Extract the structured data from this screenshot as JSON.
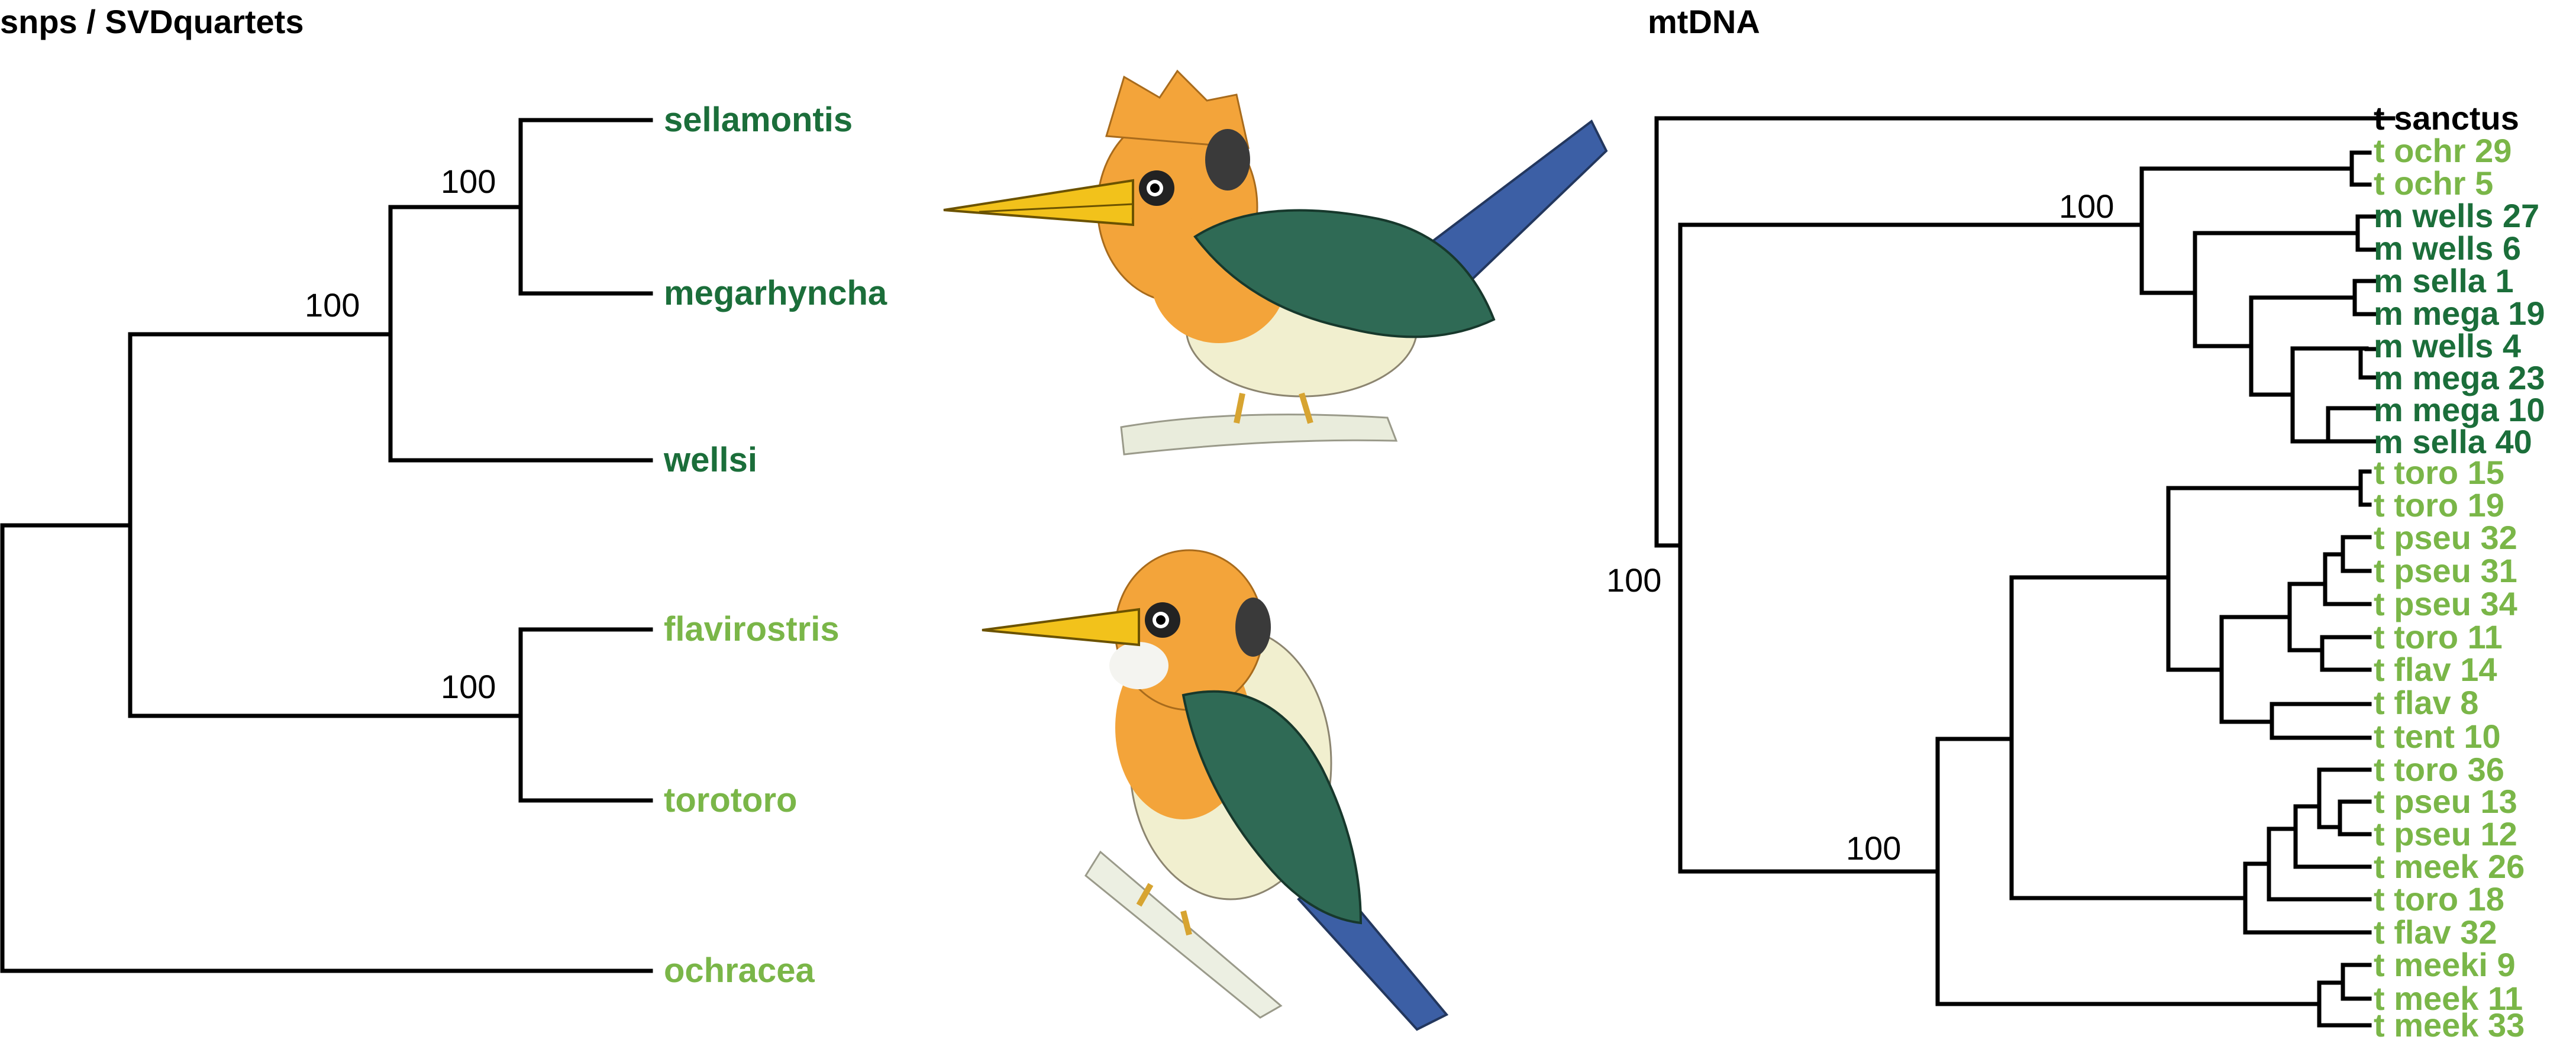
{
  "colors": {
    "dark_green": "#1b6e3a",
    "light_green": "#7ab648",
    "black": "#000000",
    "orange": "#f3a43a",
    "bird_green": "#2f6a55",
    "bird_blue": "#3c5fa5",
    "cream": "#f1efcf",
    "beak": "#f2c21b"
  },
  "left_tree": {
    "title": "snps / SVDquartets",
    "tips": [
      {
        "label": "sellamontis",
        "color": "#1b6e3a"
      },
      {
        "label": "megarhyncha",
        "color": "#1b6e3a"
      },
      {
        "label": "wellsi",
        "color": "#1b6e3a"
      },
      {
        "label": "flavirostris",
        "color": "#7ab648"
      },
      {
        "label": "torotoro",
        "color": "#7ab648"
      },
      {
        "label": "ochracea",
        "color": "#7ab648"
      }
    ],
    "supports": [
      "100",
      "100",
      "100"
    ]
  },
  "right_tree": {
    "title": "mtDNA",
    "tips": [
      {
        "label": "t sanctus",
        "color": "#000000"
      },
      {
        "label": "t ochr 29",
        "color": "#7ab648"
      },
      {
        "label": "t ochr 5",
        "color": "#7ab648"
      },
      {
        "label": "m wells 27",
        "color": "#1b6e3a"
      },
      {
        "label": "m wells 6",
        "color": "#1b6e3a"
      },
      {
        "label": "m sella 1",
        "color": "#1b6e3a"
      },
      {
        "label": "m mega 19",
        "color": "#1b6e3a"
      },
      {
        "label": "m wells 4",
        "color": "#1b6e3a"
      },
      {
        "label": "m mega 23",
        "color": "#1b6e3a"
      },
      {
        "label": "m mega 10",
        "color": "#1b6e3a"
      },
      {
        "label": "m sella 40",
        "color": "#1b6e3a"
      },
      {
        "label": "t toro 15",
        "color": "#7ab648"
      },
      {
        "label": "t toro 19",
        "color": "#7ab648"
      },
      {
        "label": "t pseu 32",
        "color": "#7ab648"
      },
      {
        "label": "t pseu 31",
        "color": "#7ab648"
      },
      {
        "label": "t pseu 34",
        "color": "#7ab648"
      },
      {
        "label": "t toro 11",
        "color": "#7ab648"
      },
      {
        "label": "t flav 14",
        "color": "#7ab648"
      },
      {
        "label": "t flav 8",
        "color": "#7ab648"
      },
      {
        "label": "t tent 10",
        "color": "#7ab648"
      },
      {
        "label": "t toro 36",
        "color": "#7ab648"
      },
      {
        "label": "t pseu 13",
        "color": "#7ab648"
      },
      {
        "label": "t pseu 12",
        "color": "#7ab648"
      },
      {
        "label": "t meek 26",
        "color": "#7ab648"
      },
      {
        "label": "t toro 18",
        "color": "#7ab648"
      },
      {
        "label": "t flav 32",
        "color": "#7ab648"
      },
      {
        "label": "t meeki 9",
        "color": "#7ab648"
      },
      {
        "label": "t meek 11",
        "color": "#7ab648"
      },
      {
        "label": "t meek 33",
        "color": "#7ab648"
      }
    ],
    "supports": [
      "100",
      "100",
      "100"
    ]
  },
  "illustrations": [
    {
      "icon": "kingfisher-perched-illustration"
    },
    {
      "icon": "kingfisher-side-illustration"
    }
  ]
}
